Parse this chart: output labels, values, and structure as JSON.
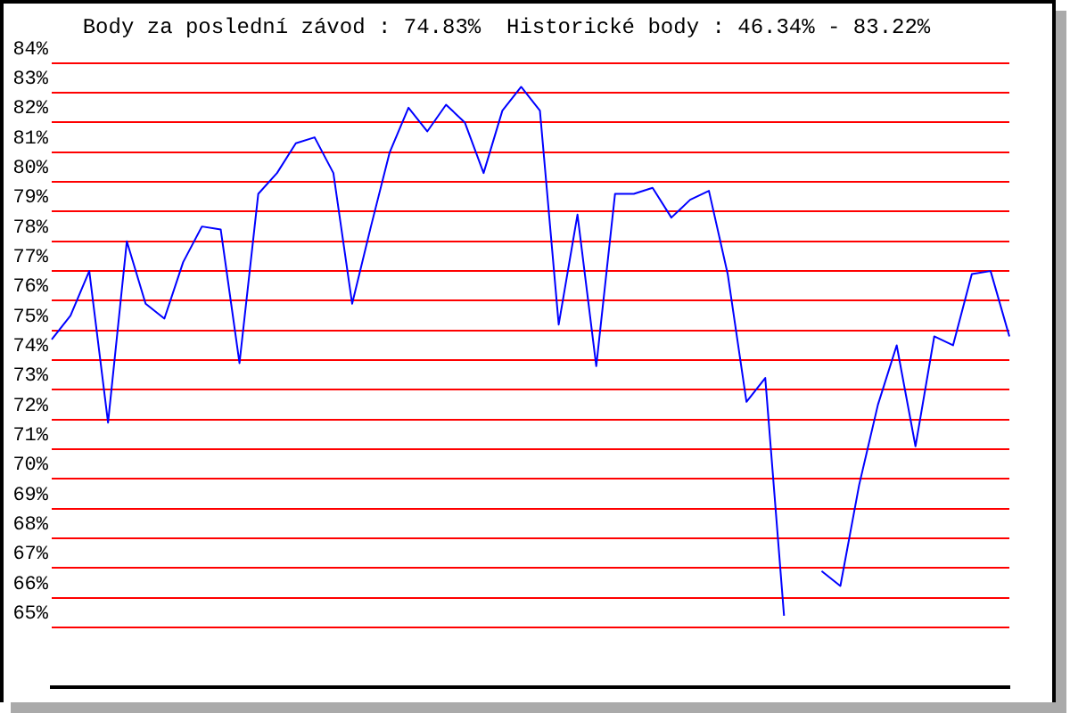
{
  "chart_data": {
    "type": "line",
    "title": "Body za poslední závod : 74.83%  Historické body : 46.34% - 83.22%",
    "categories": [
      null,
      null,
      null,
      null,
      null,
      null,
      null,
      null,
      null,
      null,
      null,
      null,
      null,
      null,
      null,
      null,
      null,
      null,
      null,
      null,
      null,
      null,
      null,
      null,
      null,
      null,
      null,
      null,
      null,
      null,
      null,
      null,
      null,
      null,
      null,
      null,
      null,
      null,
      null,
      null,
      null,
      null,
      null,
      null,
      null,
      null,
      null,
      null,
      null,
      null,
      null,
      null
    ],
    "series": [
      {
        "color": "#0000ff",
        "values": [
          74.7,
          75.5,
          77.0,
          71.9,
          78.0,
          75.9,
          75.4,
          77.3,
          78.5,
          78.4,
          73.9,
          79.6,
          80.3,
          81.3,
          81.5,
          80.3,
          75.9,
          78.5,
          81.0,
          82.5,
          81.7,
          82.6,
          82.0,
          80.3,
          82.4,
          83.2,
          82.4,
          75.2,
          78.9,
          73.8,
          79.6,
          79.6,
          79.8,
          78.8,
          79.4,
          79.7,
          76.9,
          72.6,
          73.4,
          65.4,
          null,
          null,
          null,
          null,
          null,
          null,
          null,
          null,
          null,
          null,
          null,
          null
        ]
      },
      {
        "color": "#0000ff",
        "values": [
          null,
          null,
          null,
          null,
          null,
          null,
          null,
          null,
          null,
          null,
          null,
          null,
          null,
          null,
          null,
          null,
          null,
          null,
          null,
          null,
          null,
          null,
          null,
          null,
          null,
          null,
          null,
          null,
          null,
          null,
          null,
          null,
          null,
          null,
          null,
          null,
          null,
          null,
          null,
          null,
          null,
          66.9,
          66.4,
          69.8,
          72.5,
          74.5,
          71.1,
          74.8,
          74.5,
          76.9,
          77.0,
          74.8
        ]
      }
    ],
    "ylim": [
      63,
      84
    ],
    "yticks": [
      {
        "value": 65,
        "label": "65%"
      },
      {
        "value": 66,
        "label": "66%"
      },
      {
        "value": 67,
        "label": "67%"
      },
      {
        "value": 68,
        "label": "68%"
      },
      {
        "value": 69,
        "label": "69%"
      },
      {
        "value": 70,
        "label": "70%"
      },
      {
        "value": 71,
        "label": "71%"
      },
      {
        "value": 72,
        "label": "72%"
      },
      {
        "value": 73,
        "label": "73%"
      },
      {
        "value": 74,
        "label": "74%"
      },
      {
        "value": 75,
        "label": "75%"
      },
      {
        "value": 76,
        "label": "76%"
      },
      {
        "value": 77,
        "label": "77%"
      },
      {
        "value": 78,
        "label": "78%"
      },
      {
        "value": 79,
        "label": "79%"
      },
      {
        "value": 80,
        "label": "80%"
      },
      {
        "value": 81,
        "label": "81%"
      },
      {
        "value": 82,
        "label": "82%"
      },
      {
        "value": 83,
        "label": "83%"
      },
      {
        "value": 84,
        "label": "84%"
      }
    ],
    "grid": "y",
    "tick_labels": "y",
    "marker": "none",
    "line_style": "solid",
    "legend": false
  }
}
